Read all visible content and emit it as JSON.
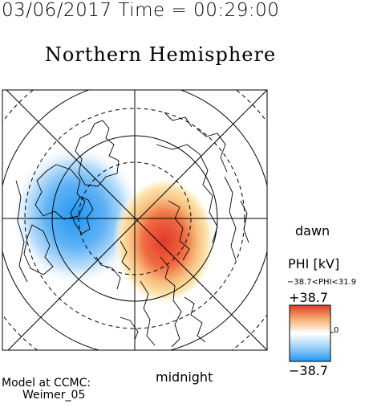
{
  "header": "03/06/2017 Time = 00:29:00",
  "title": "Northern Hemisphere",
  "labels": {
    "dawn": "dawn",
    "midnight": "midnight"
  },
  "credit": {
    "line1": "Model at CCMC:",
    "line2": "Weimer_05"
  },
  "colorbar": {
    "title": "PHI [kV]",
    "range": "−38.7<PHI<31.9",
    "max": "+38.7",
    "min": "−38.7",
    "mid": "0",
    "colors": [
      "#2196f3",
      "#9fd1f7",
      "#ffffff",
      "#f5b070",
      "#e23a2a"
    ]
  },
  "potential": {
    "min_kv": -38.7,
    "max_kv": 31.9
  }
}
